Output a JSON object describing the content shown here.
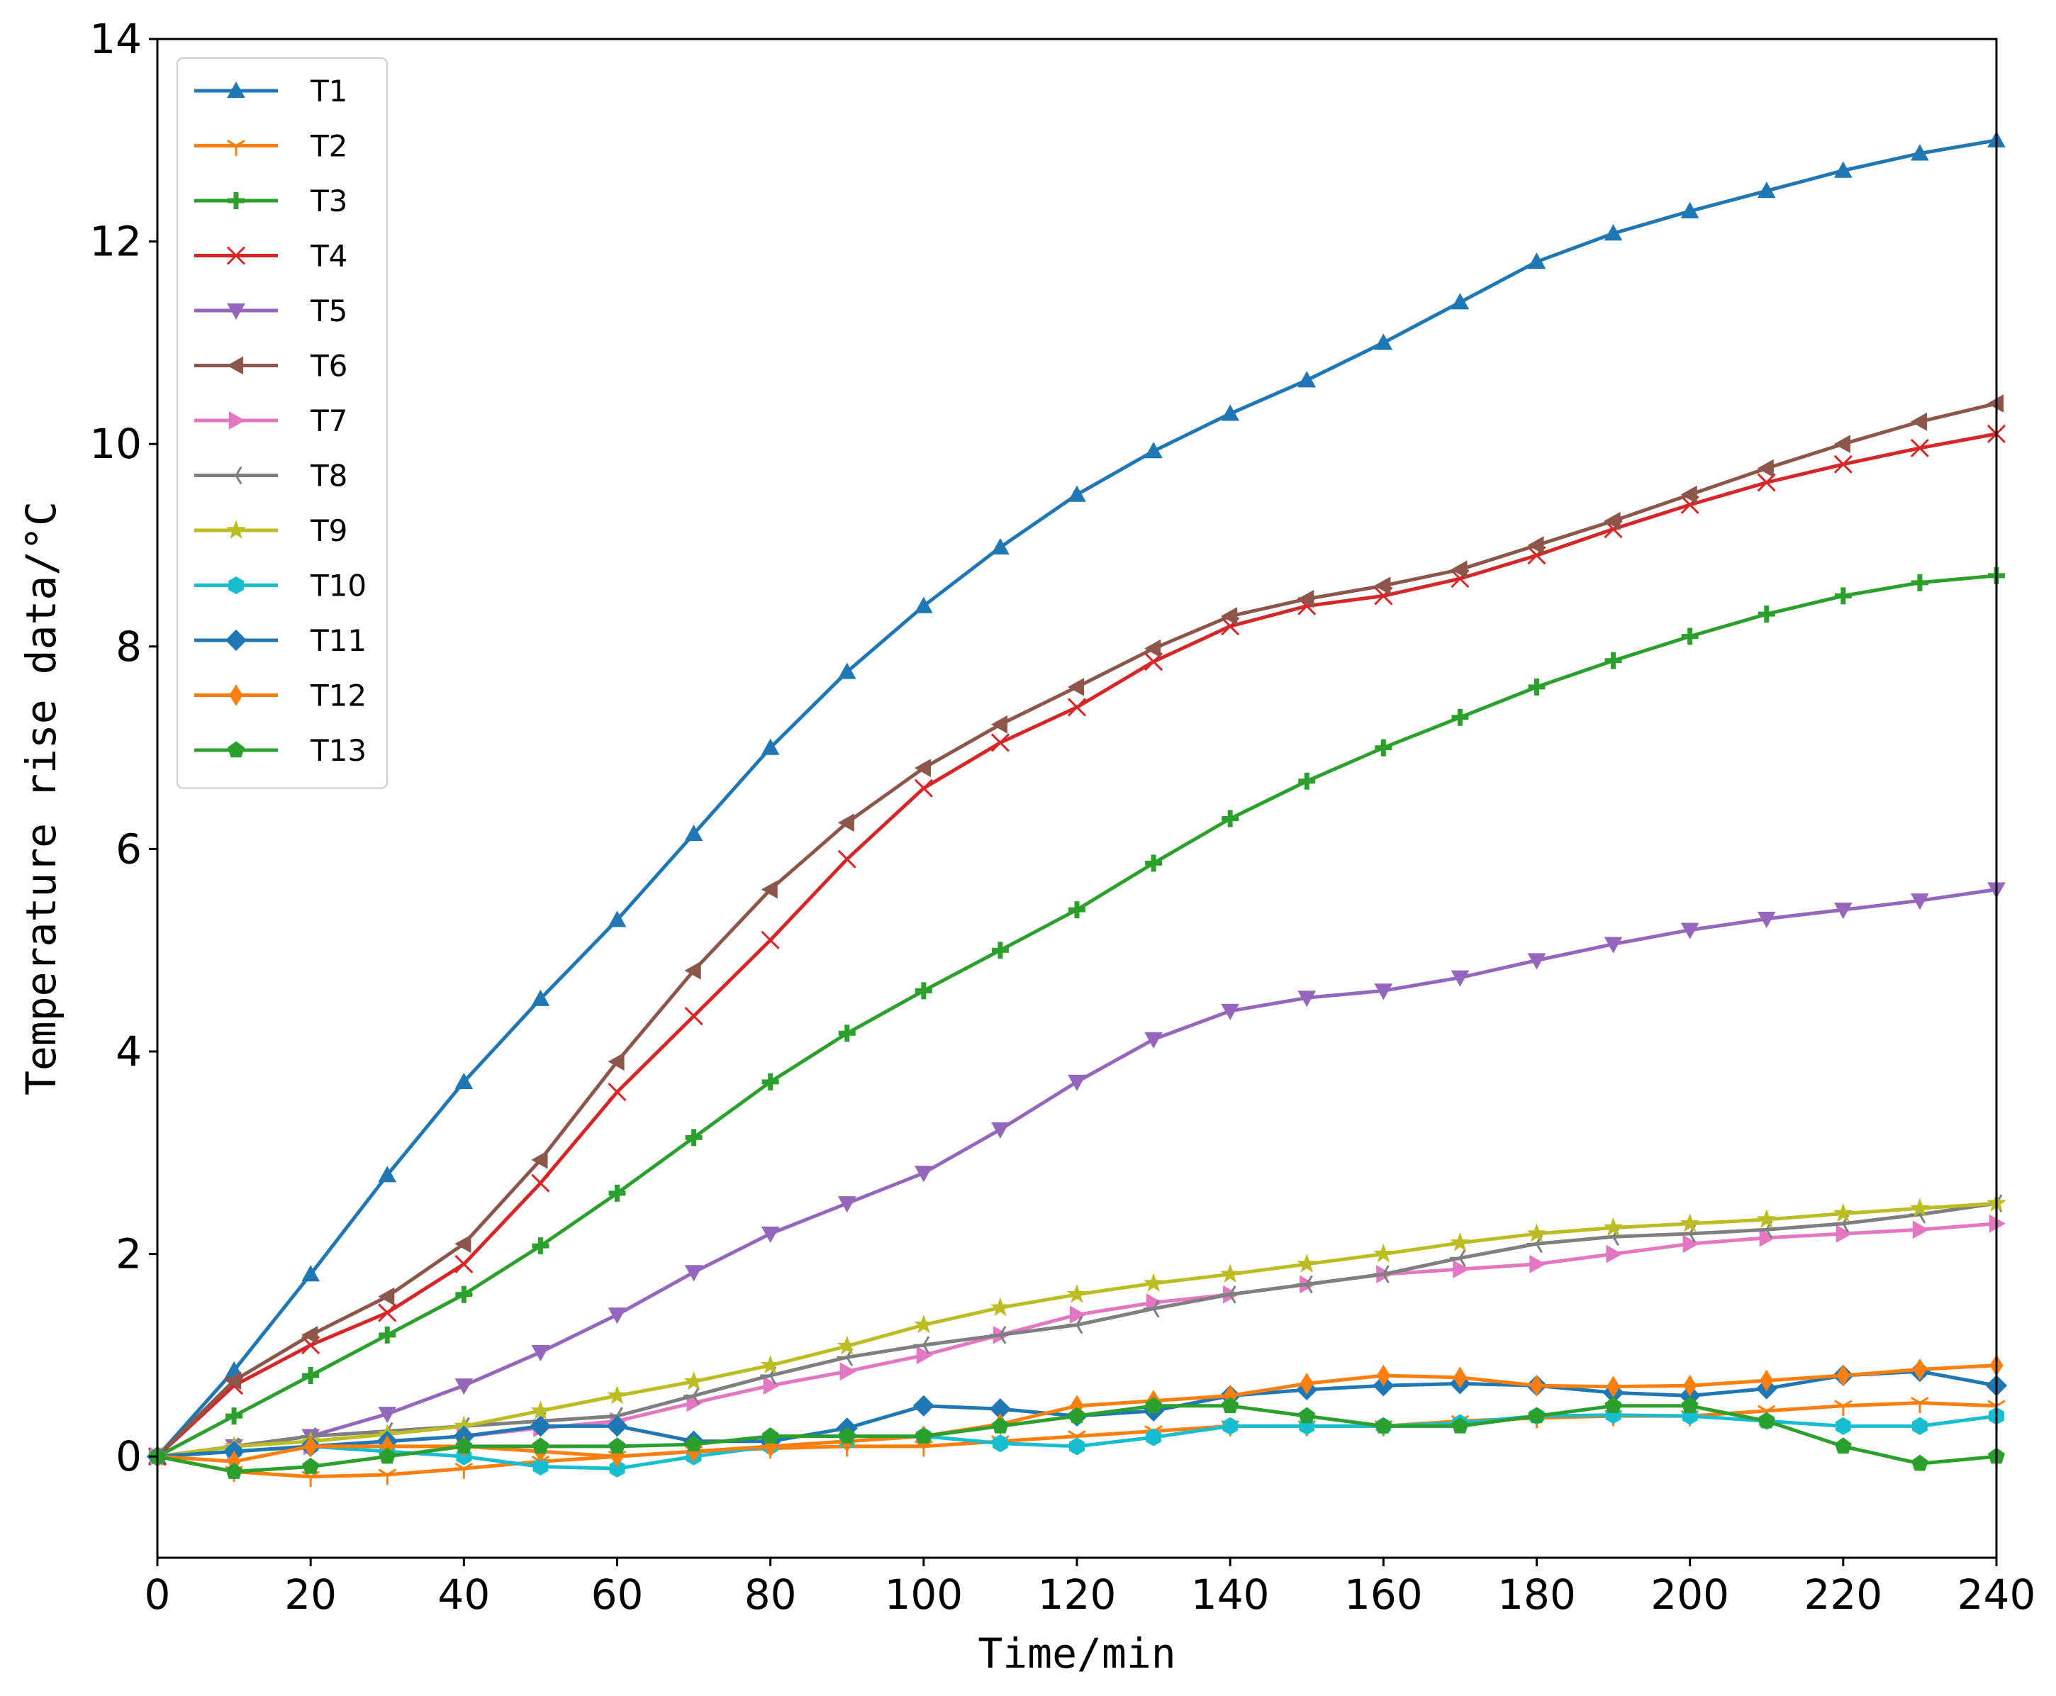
{
  "chart_data": {
    "type": "line",
    "title": "",
    "xlabel": "Time/min",
    "ylabel": "Temperature rise data/°C",
    "xlim": [
      0,
      240
    ],
    "ylim": [
      -1,
      14
    ],
    "xticks": [
      0,
      20,
      40,
      60,
      80,
      100,
      120,
      140,
      160,
      180,
      200,
      220,
      240
    ],
    "yticks": [
      0,
      2,
      4,
      6,
      8,
      10,
      12,
      14
    ],
    "grid": false,
    "legend_position": "top-left",
    "x": [
      0,
      10,
      20,
      30,
      40,
      50,
      60,
      70,
      80,
      90,
      100,
      110,
      120,
      130,
      140,
      150,
      160,
      170,
      180,
      190,
      200,
      210,
      220,
      230,
      240
    ],
    "series": [
      {
        "name": "T1",
        "color": "#1f77b4",
        "marker": "triangle-up",
        "values": [
          0,
          0.85,
          1.8,
          2.78,
          3.7,
          4.52,
          5.3,
          6.15,
          7.0,
          7.75,
          8.4,
          8.98,
          9.5,
          9.93,
          10.3,
          10.63,
          11.0,
          11.4,
          11.8,
          12.08,
          12.3,
          12.5,
          12.7,
          12.87,
          13.0
        ]
      },
      {
        "name": "T2",
        "color": "#ff7f0e",
        "marker": "tri-down",
        "values": [
          0,
          -0.15,
          -0.2,
          -0.18,
          -0.12,
          -0.05,
          0.0,
          0.05,
          0.08,
          0.1,
          0.1,
          0.15,
          0.2,
          0.25,
          0.3,
          0.3,
          0.3,
          0.35,
          0.38,
          0.4,
          0.4,
          0.45,
          0.5,
          0.53,
          0.5
        ]
      },
      {
        "name": "T3",
        "color": "#2ca02c",
        "marker": "plus",
        "values": [
          0,
          0.4,
          0.8,
          1.2,
          1.6,
          2.08,
          2.6,
          3.15,
          3.7,
          4.18,
          4.6,
          5.0,
          5.4,
          5.86,
          6.3,
          6.67,
          7.0,
          7.3,
          7.6,
          7.86,
          8.1,
          8.32,
          8.5,
          8.63,
          8.7
        ]
      },
      {
        "name": "T4",
        "color": "#d62728",
        "marker": "x",
        "values": [
          0,
          0.7,
          1.1,
          1.42,
          1.9,
          2.7,
          3.6,
          4.35,
          5.1,
          5.9,
          6.6,
          7.05,
          7.4,
          7.85,
          8.2,
          8.4,
          8.5,
          8.67,
          8.9,
          9.16,
          9.4,
          9.62,
          9.8,
          9.96,
          10.1
        ]
      },
      {
        "name": "T5",
        "color": "#9467bd",
        "marker": "triangle-down",
        "values": [
          0,
          0.1,
          0.2,
          0.42,
          0.7,
          1.03,
          1.4,
          1.82,
          2.2,
          2.5,
          2.8,
          3.23,
          3.7,
          4.12,
          4.4,
          4.53,
          4.6,
          4.73,
          4.9,
          5.06,
          5.2,
          5.31,
          5.4,
          5.49,
          5.6
        ]
      },
      {
        "name": "T6",
        "color": "#8c564b",
        "marker": "triangle-left",
        "values": [
          0,
          0.75,
          1.2,
          1.58,
          2.1,
          2.93,
          3.9,
          4.8,
          5.6,
          6.26,
          6.8,
          7.23,
          7.6,
          7.98,
          8.3,
          8.47,
          8.6,
          8.76,
          9.0,
          9.24,
          9.5,
          9.76,
          10.0,
          10.22,
          10.4
        ]
      },
      {
        "name": "T7",
        "color": "#e377c2",
        "marker": "triangle-right",
        "values": [
          0,
          0.05,
          0.1,
          0.15,
          0.2,
          0.28,
          0.35,
          0.53,
          0.7,
          0.84,
          1.0,
          1.2,
          1.4,
          1.52,
          1.6,
          1.7,
          1.8,
          1.85,
          1.9,
          2.0,
          2.1,
          2.16,
          2.2,
          2.24,
          2.3
        ]
      },
      {
        "name": "T8",
        "color": "#7f7f7f",
        "marker": "tri-left",
        "values": [
          0,
          0.1,
          0.2,
          0.25,
          0.3,
          0.35,
          0.4,
          0.6,
          0.8,
          0.98,
          1.1,
          1.2,
          1.3,
          1.46,
          1.6,
          1.7,
          1.8,
          1.96,
          2.1,
          2.17,
          2.2,
          2.24,
          2.3,
          2.39,
          2.5
        ]
      },
      {
        "name": "T9",
        "color": "#bcbd22",
        "marker": "star",
        "values": [
          0,
          0.1,
          0.15,
          0.22,
          0.3,
          0.45,
          0.6,
          0.74,
          0.9,
          1.09,
          1.3,
          1.47,
          1.6,
          1.71,
          1.8,
          1.9,
          2.0,
          2.11,
          2.2,
          2.26,
          2.3,
          2.34,
          2.4,
          2.45,
          2.5
        ]
      },
      {
        "name": "T10",
        "color": "#17becf",
        "marker": "hexagon",
        "values": [
          0,
          0.05,
          0.1,
          0.05,
          0.0,
          -0.1,
          -0.12,
          0.0,
          0.1,
          0.15,
          0.2,
          0.13,
          0.1,
          0.19,
          0.3,
          0.3,
          0.3,
          0.33,
          0.4,
          0.41,
          0.4,
          0.35,
          0.3,
          0.3,
          0.4
        ]
      },
      {
        "name": "T11",
        "color": "#1f77b4",
        "marker": "diamond",
        "values": [
          0,
          0.05,
          0.1,
          0.15,
          0.2,
          0.3,
          0.3,
          0.15,
          0.15,
          0.28,
          0.5,
          0.47,
          0.4,
          0.45,
          0.6,
          0.66,
          0.7,
          0.72,
          0.7,
          0.63,
          0.6,
          0.67,
          0.8,
          0.84,
          0.7
        ]
      },
      {
        "name": "T12",
        "color": "#ff7f0e",
        "marker": "thin-diamond",
        "values": [
          0,
          -0.05,
          0.1,
          0.1,
          0.1,
          0.05,
          0.0,
          0.05,
          0.1,
          0.15,
          0.2,
          0.32,
          0.5,
          0.55,
          0.6,
          0.72,
          0.8,
          0.78,
          0.7,
          0.69,
          0.7,
          0.75,
          0.8,
          0.86,
          0.9
        ]
      },
      {
        "name": "T13",
        "color": "#2ca02c",
        "marker": "pentagon",
        "values": [
          0,
          -0.15,
          -0.1,
          0.0,
          0.1,
          0.1,
          0.1,
          0.12,
          0.2,
          0.2,
          0.2,
          0.3,
          0.4,
          0.5,
          0.5,
          0.4,
          0.3,
          0.3,
          0.4,
          0.5,
          0.5,
          0.35,
          0.1,
          -0.07,
          0.0
        ]
      }
    ]
  }
}
